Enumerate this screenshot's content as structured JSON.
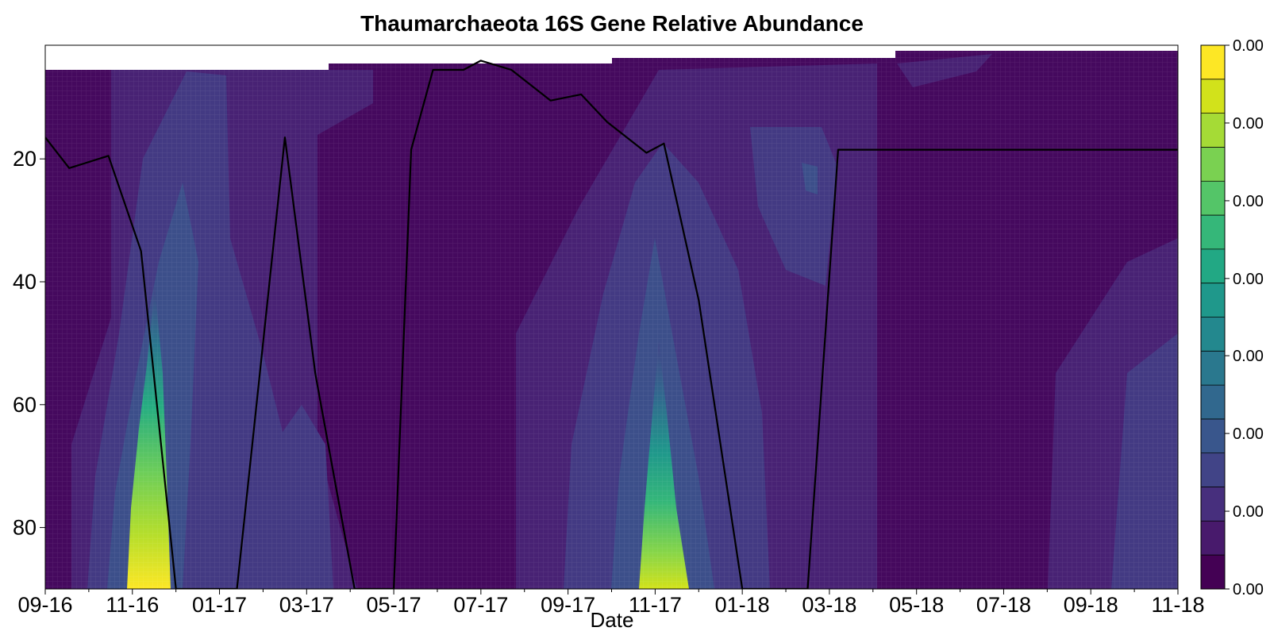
{
  "chart_data": {
    "type": "heatmap",
    "title": "Thaumarchaeota 16S Gene Relative Abundance",
    "xlabel": "Date",
    "ylabel": "",
    "x_ticks": [
      "09-16",
      "11-16",
      "01-17",
      "03-17",
      "05-17",
      "07-17",
      "09-17",
      "11-17",
      "01-18",
      "03-18",
      "05-18",
      "07-18",
      "09-18",
      "11-18"
    ],
    "y_ticks": [
      20,
      40,
      60,
      80
    ],
    "y_range": [
      1.5,
      90
    ],
    "y_inverted": true,
    "colorbar_labels": [
      "0.00",
      "0.00",
      "0.00",
      "0.00",
      "0.00",
      "0.00",
      "0.00",
      "0.00"
    ],
    "colorbar_levels": [
      "#440154",
      "#481a6c",
      "#472f7d",
      "#414487",
      "#39568c",
      "#31688e",
      "#2a788e",
      "#23888e",
      "#1f988b",
      "#22a884",
      "#35b779",
      "#54c568",
      "#7ad151",
      "#a5db36",
      "#d2e21b",
      "#fde725"
    ],
    "colorbar_ticks": [
      0.0,
      0.143,
      0.286,
      0.429,
      0.571,
      0.714,
      0.857,
      1.0
    ],
    "mixed_layer_depth": {
      "x": [
        0.0,
        0.55,
        1.45,
        2.2,
        3.0,
        4.4,
        5.5,
        6.2,
        7.1,
        8.0,
        8.4,
        8.9,
        9.6,
        10.0,
        10.7,
        11.6,
        12.3,
        12.9,
        13.8,
        14.2,
        15.0,
        16.0,
        17.5,
        18.2,
        19.4,
        20.0,
        21.2,
        21.6,
        22.6,
        23.1,
        24.9,
        26.1,
        27.4,
        29.0,
        29.5,
        30.8,
        32.1,
        32.9,
        34.1,
        34.5,
        35.2,
        35.7,
        36.4,
        38.0,
        38.6,
        39.8,
        40.5,
        41.3,
        42.0,
        43.0,
        43.8,
        45.0,
        46.0,
        47.3,
        48.0,
        49.3,
        50.2,
        51.5,
        52.0,
        52.5
      ],
      "y": [
        16.5,
        21.5,
        19.5,
        35.0,
        90.0,
        90.0,
        16.5,
        55.0,
        90.0,
        90.0,
        18.5,
        5.5,
        5.5,
        4.0,
        5.5,
        10.5,
        9.5,
        14.0,
        19.0,
        17.5,
        43.0,
        90.0,
        90.0,
        18.5,
        18.5,
        18.5,
        18.5,
        18.5,
        18.5,
        18.5,
        18.5,
        18.5,
        18.5,
        18.5,
        18.5,
        18.5,
        90.0,
        55.0,
        90.0,
        90.0,
        90.0,
        90.0,
        90.0,
        90.0,
        3.0,
        8.5,
        7.5,
        6.0,
        4.0,
        8.5,
        9.5,
        10.0,
        18.5,
        21.5,
        24.5,
        29.0,
        29.0,
        29.0,
        29.0,
        29.0
      ],
      "color": "#000000"
    }
  }
}
